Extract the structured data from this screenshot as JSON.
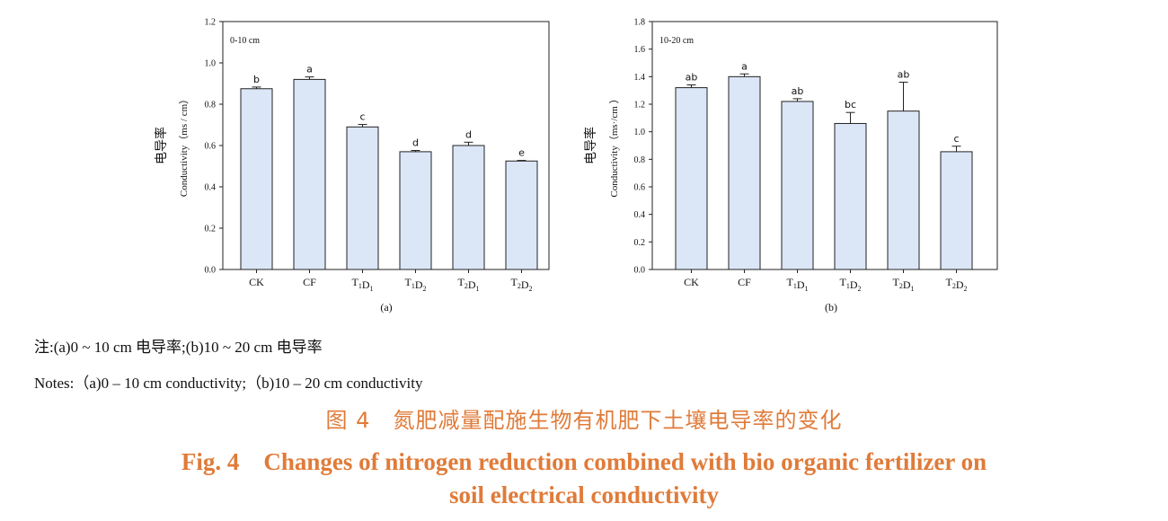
{
  "chart_data": [
    {
      "type": "bar",
      "panel_label": "0-10 cm",
      "sublabel": "(a)",
      "ylabel_cn": "电导率",
      "ylabel": "Conductivity（ms / cm）",
      "ylim": [
        0,
        1.2
      ],
      "yticks": [
        "0.0",
        "0.2",
        "0.4",
        "0.6",
        "0.8",
        "1.0",
        "1.2"
      ],
      "categories": [
        {
          "main": "CK",
          "parts": []
        },
        {
          "main": "CF",
          "parts": []
        },
        {
          "main": "",
          "parts": [
            [
              "T",
              "1"
            ],
            [
              "D",
              "1"
            ]
          ]
        },
        {
          "main": "",
          "parts": [
            [
              "T",
              "1"
            ],
            [
              "D",
              "2"
            ]
          ]
        },
        {
          "main": "",
          "parts": [
            [
              "T",
              "2"
            ],
            [
              "D",
              "1"
            ]
          ]
        },
        {
          "main": "",
          "parts": [
            [
              "T",
              "2"
            ],
            [
              "D",
              "2"
            ]
          ]
        }
      ],
      "values": [
        0.875,
        0.92,
        0.69,
        0.57,
        0.6,
        0.525
      ],
      "errors": [
        0.008,
        0.012,
        0.012,
        0.006,
        0.016,
        0.003
      ],
      "letters": [
        "b",
        "a",
        "c",
        "d",
        "d",
        "e"
      ],
      "grid": false,
      "bar_color": "#dbe6f7"
    },
    {
      "type": "bar",
      "panel_label": "10-20 cm",
      "sublabel": "(b)",
      "ylabel_cn": "电导率",
      "ylabel": "Conductivity（ms·/cm ）",
      "ylim": [
        0,
        1.8
      ],
      "yticks": [
        "0.0",
        "0.2",
        "0.4",
        "0.6",
        "0.8",
        "1.0",
        "1.2",
        "1.4",
        "1.6",
        "1.8"
      ],
      "categories": [
        {
          "main": "CK",
          "parts": []
        },
        {
          "main": "CF",
          "parts": []
        },
        {
          "main": "",
          "parts": [
            [
              "T",
              "1"
            ],
            [
              "D",
              "1"
            ]
          ]
        },
        {
          "main": "",
          "parts": [
            [
              "T",
              "1"
            ],
            [
              "D",
              "2"
            ]
          ]
        },
        {
          "main": "",
          "parts": [
            [
              "T",
              "2"
            ],
            [
              "D",
              "1"
            ]
          ]
        },
        {
          "main": "",
          "parts": [
            [
              "T",
              "2"
            ],
            [
              "D",
              "2"
            ]
          ]
        }
      ],
      "values": [
        1.32,
        1.4,
        1.22,
        1.06,
        1.15,
        0.855
      ],
      "errors": [
        0.02,
        0.02,
        0.02,
        0.08,
        0.21,
        0.04
      ],
      "letters": [
        "ab",
        "a",
        "ab",
        "bc",
        "ab",
        "c"
      ],
      "grid": false,
      "bar_color": "#dbe6f7"
    }
  ],
  "notes": {
    "cn": "注:(a)0 ~ 10 cm 电导率;(b)10 ~ 20 cm 电导率",
    "en": "Notes:（a)0 – 10 cm conductivity;（b)10 – 20 cm conductivity"
  },
  "caption": {
    "cn": "图 4　氮肥减量配施生物有机肥下土壤电导率的变化",
    "en_line1": "Fig. 4　Changes of nitrogen reduction combined with bio organic fertilizer on",
    "en_line2": "soil electrical conductivity",
    "color": "#e07b39"
  }
}
